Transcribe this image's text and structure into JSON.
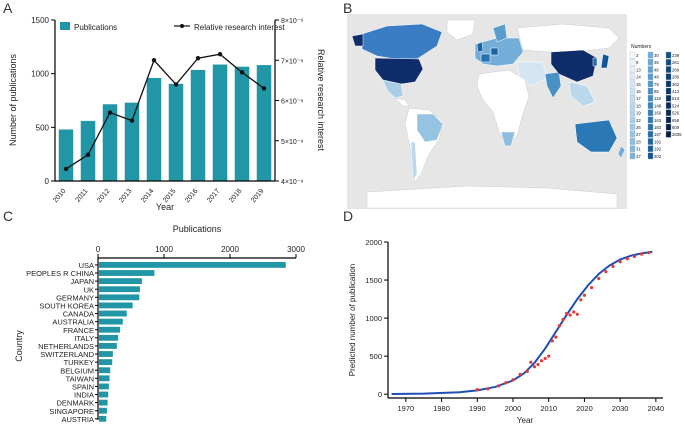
{
  "panels": {
    "a": "A",
    "b": "B",
    "c": "C",
    "d": "D"
  },
  "colors": {
    "bar": "#2196a6",
    "line": "#111111",
    "map_land": "#ffffff",
    "map_ocean": "#e6e6e6",
    "fit": "#1f4fb4",
    "points": "#e53935"
  },
  "chart_data": [
    {
      "type": "bar",
      "panel": "A",
      "categories": [
        "2010",
        "2011",
        "2012",
        "2013",
        "2014",
        "2015",
        "2016",
        "2017",
        "2018",
        "2019"
      ],
      "series": [
        {
          "name": "Publications",
          "type": "bar",
          "axis": "left",
          "values": [
            480,
            560,
            715,
            730,
            960,
            905,
            1035,
            1085,
            1065,
            1080
          ]
        },
        {
          "name": "Relative research interest",
          "type": "line",
          "axis": "right",
          "values": [
            4.3,
            4.65,
            5.7,
            5.5,
            7.0,
            6.4,
            7.05,
            7.15,
            6.7,
            6.3
          ]
        }
      ],
      "xlabel": "Year",
      "ylabel": "Number of publications",
      "y2label": "Relative research interest",
      "ylim": [
        0,
        1500
      ],
      "y2lim": [
        4,
        8
      ],
      "yticks": [
        "0",
        "500",
        "1000",
        "1500"
      ],
      "y2ticks": [
        "4×10⁻⁶",
        "5×10⁻⁶",
        "6×10⁻⁶",
        "7×10⁻⁶",
        "8×10⁻⁶"
      ],
      "legend": "top"
    },
    {
      "type": "bar",
      "panel": "C",
      "orientation": "horizontal",
      "title": "Publications",
      "categories": [
        "USA",
        "PEOPLES R CHINA",
        "JAPAN",
        "UK",
        "GERMANY",
        "SOUTH KOREA",
        "CANADA",
        "AUSTRALIA",
        "FRANCE",
        "ITALY",
        "NETHERLANDS",
        "SWITZERLAND",
        "TURKEY",
        "BELGIUM",
        "TAIWAN",
        "SPAIN",
        "INDIA",
        "DENMARK",
        "SINGAPORE",
        "AUSTRIA"
      ],
      "values": [
        2830,
        840,
        650,
        620,
        610,
        510,
        420,
        360,
        320,
        290,
        270,
        210,
        200,
        170,
        160,
        150,
        140,
        130,
        120,
        110
      ],
      "ylabel": "Country",
      "xlim": [
        0,
        3000
      ],
      "xticks": [
        "0",
        "1000",
        "2000",
        "3000"
      ]
    },
    {
      "type": "scatter",
      "panel": "D",
      "xlabel": "Year",
      "ylabel": "Predicted number of publication",
      "xlim": [
        1965,
        2042
      ],
      "ylim": [
        -50,
        2000
      ],
      "xticks": [
        "1970",
        "1980",
        "1990",
        "2000",
        "2010",
        "2020",
        "2030",
        "2040"
      ],
      "yticks": [
        "0",
        "500",
        "1000",
        "1500",
        "2000"
      ],
      "series": [
        {
          "type": "line",
          "x": [
            1966,
            1975,
            1985,
            1990,
            1995,
            2000,
            2003,
            2006,
            2009,
            2012,
            2015,
            2018,
            2021,
            2024,
            2027,
            2030,
            2033,
            2036,
            2039
          ],
          "values": [
            3,
            8,
            25,
            50,
            95,
            180,
            270,
            410,
            600,
            820,
            1040,
            1250,
            1430,
            1580,
            1690,
            1770,
            1820,
            1850,
            1870
          ]
        },
        {
          "type": "scatter",
          "x": [
            1990,
            1993,
            1996,
            1998,
            2000,
            2002,
            2004,
            2005,
            2006,
            2007,
            2008,
            2009,
            2010,
            2011,
            2012,
            2013,
            2014,
            2015,
            2016,
            2017,
            2018,
            2019,
            2020,
            2022,
            2024,
            2026,
            2028,
            2030,
            2032,
            2034,
            2036,
            2038
          ],
          "values": [
            60,
            70,
            110,
            150,
            190,
            260,
            300,
            420,
            360,
            390,
            440,
            470,
            500,
            700,
            750,
            900,
            980,
            1060,
            1040,
            1080,
            1050,
            1240,
            1300,
            1400,
            1520,
            1610,
            1680,
            1740,
            1780,
            1810,
            1840,
            1860
          ]
        }
      ]
    }
  ],
  "map": {
    "legend_title": "Numbers",
    "legend_col1": [
      "3",
      "9",
      "13",
      "14",
      "15",
      "16",
      "17",
      "18",
      "19",
      "22",
      "26",
      "27",
      "28",
      "31",
      "37"
    ],
    "legend_col2": [
      "30",
      "46",
      "46",
      "48",
      "79",
      "85",
      "118",
      "148",
      "160",
      "163",
      "183",
      "187",
      "191",
      "192",
      "202"
    ],
    "legend_col3": [
      "239",
      "261",
      "266",
      "286",
      "362",
      "413",
      "510",
      "524",
      "526",
      "658",
      "609",
      "2835"
    ],
    "legend_colors1": [
      "#f6fafd",
      "#eef5fb",
      "#e6f0f9",
      "#ddebf6",
      "#d4e6f3",
      "#cce1f1",
      "#c3dcee",
      "#bad7ec",
      "#b1d2ea",
      "#a8cde7",
      "#a0c8e5",
      "#97c3e2",
      "#8fbde0",
      "#86b8dd",
      "#7db3db"
    ],
    "legend_colors2": [
      "#74aed8",
      "#6ba8d5",
      "#63a3d2",
      "#5a9dcf",
      "#5197cb",
      "#4991c7",
      "#418bc3",
      "#3985bf",
      "#317fbb",
      "#2a78b6",
      "#2472b1",
      "#1f6bab",
      "#1a64a5",
      "#165d9e",
      "#135697"
    ],
    "legend_colors3": [
      "#104f8f",
      "#0e4988",
      "#0c4380",
      "#0b3e79",
      "#0a3972",
      "#09346b",
      "#083064",
      "#082c5d",
      "#072856",
      "#07244f",
      "#062048",
      "#061c41"
    ]
  }
}
